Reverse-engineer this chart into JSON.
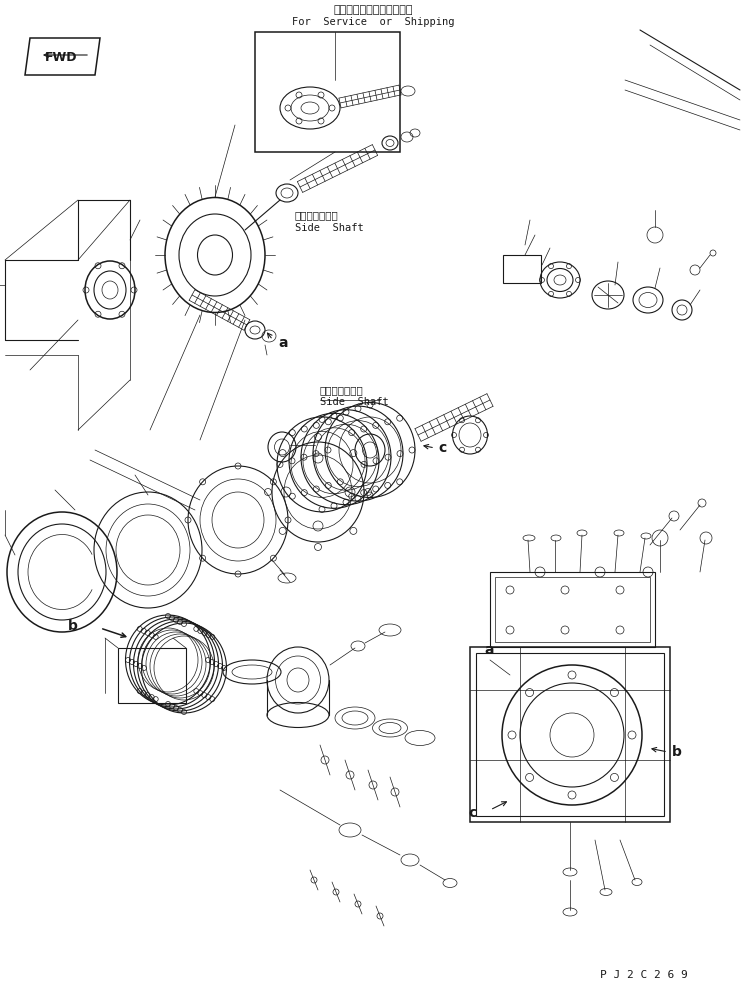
{
  "title_jp": "サービスまたは運搬部品用",
  "title_en": "For  Service  or  Shipping",
  "side_shaft_jp1": "サイドシャフト",
  "side_shaft_en1": "Side  Shaft",
  "side_shaft_jp2": "サイドシャフト",
  "side_shaft_en2": "Side  Shaft",
  "label_a1": "a",
  "label_a2": "a",
  "label_b1": "b",
  "label_b2": "b",
  "label_c1": "c",
  "label_c2": "c",
  "label_fwd": "FWD",
  "part_number": "P J 2 C 2 6 9",
  "bg_color": "#ffffff",
  "line_color": "#1a1a1a",
  "fig_width": 7.46,
  "fig_height": 9.89,
  "dpi": 100
}
